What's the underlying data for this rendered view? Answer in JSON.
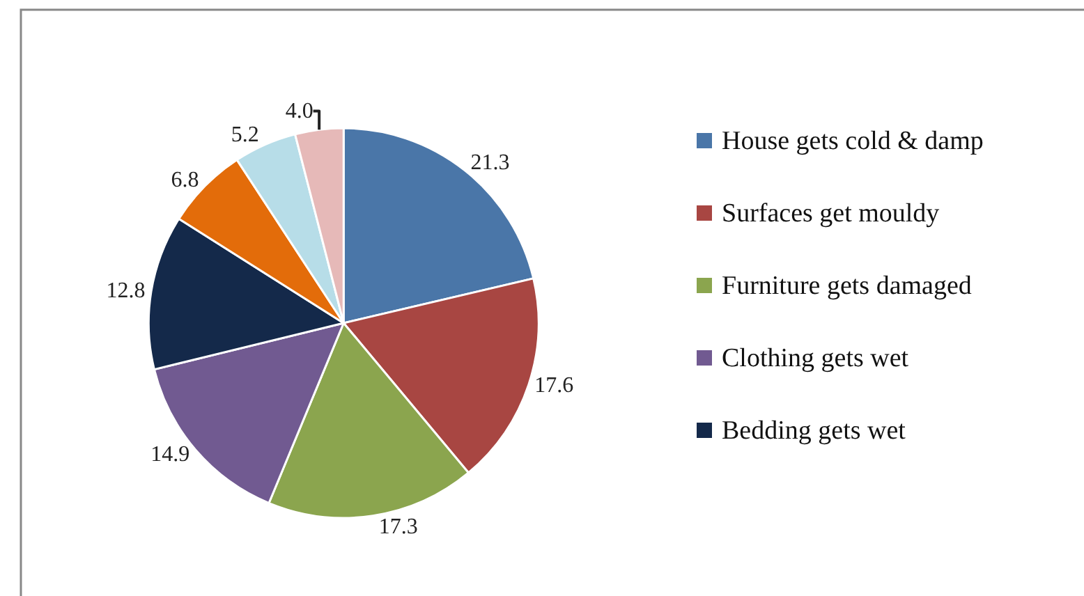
{
  "chart_data": {
    "type": "pie",
    "categories": [
      "House gets cold & damp",
      "Surfaces get mouldy",
      "Furniture gets damaged",
      "Clothing gets wet",
      "Bedding gets wet",
      null,
      null,
      null
    ],
    "values": [
      21.3,
      17.6,
      17.3,
      14.9,
      12.8,
      6.8,
      5.2,
      4.0
    ],
    "colors": [
      "#4a76a8",
      "#a84642",
      "#8ba54e",
      "#715a91",
      "#14294a",
      "#e36c0a",
      "#b7dde8",
      "#e6b9b8"
    ],
    "value_labels": [
      "21.3",
      "17.6",
      "17.3",
      "14.9",
      "12.8",
      "6.8",
      "5.2",
      "4.0"
    ],
    "legend": "right"
  }
}
